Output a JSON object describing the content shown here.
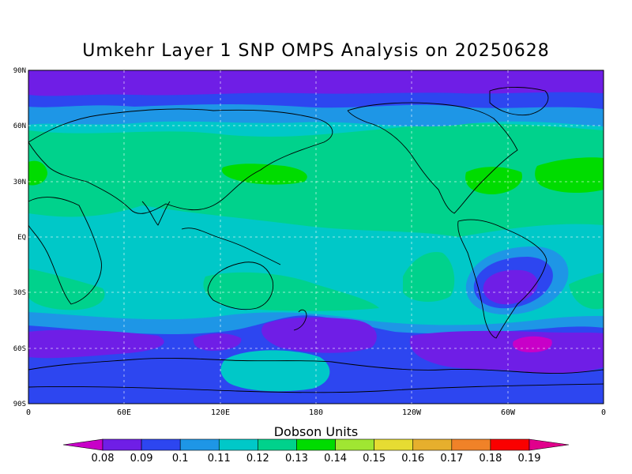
{
  "title": "Umkehr Layer 1 SNP OMPS Analysis on 20250628",
  "map": {
    "lat_labels": [
      "90N",
      "60N",
      "30N",
      "EQ",
      "30S",
      "60S",
      "90S"
    ],
    "lon_labels": [
      "0",
      "60E",
      "120E",
      "180",
      "120W",
      "60W",
      "0"
    ],
    "grid": true,
    "contour_fills": [
      {
        "level": 0.08,
        "color": "#c800c8"
      },
      {
        "level": 0.09,
        "color": "#6f1ee6"
      },
      {
        "level": 0.1,
        "color": "#2d46f0"
      },
      {
        "level": 0.11,
        "color": "#1e96e6"
      },
      {
        "level": 0.12,
        "color": "#00c8c8"
      },
      {
        "level": 0.13,
        "color": "#00d28c"
      },
      {
        "level": 0.14,
        "color": "#00dc00"
      }
    ]
  },
  "colorbar": {
    "title": "Dobson Units",
    "labels": [
      "0.08",
      "0.09",
      "0.1",
      "0.11",
      "0.12",
      "0.13",
      "0.14",
      "0.15",
      "0.16",
      "0.17",
      "0.18",
      "0.19"
    ],
    "colors": [
      "#c800c8",
      "#6f1ee6",
      "#2d46f0",
      "#1e96e6",
      "#00c8c8",
      "#00d28c",
      "#00dc00",
      "#a0e632",
      "#e6dc32",
      "#e6af2d",
      "#f08228",
      "#fa0000",
      "#e1008c"
    ]
  }
}
